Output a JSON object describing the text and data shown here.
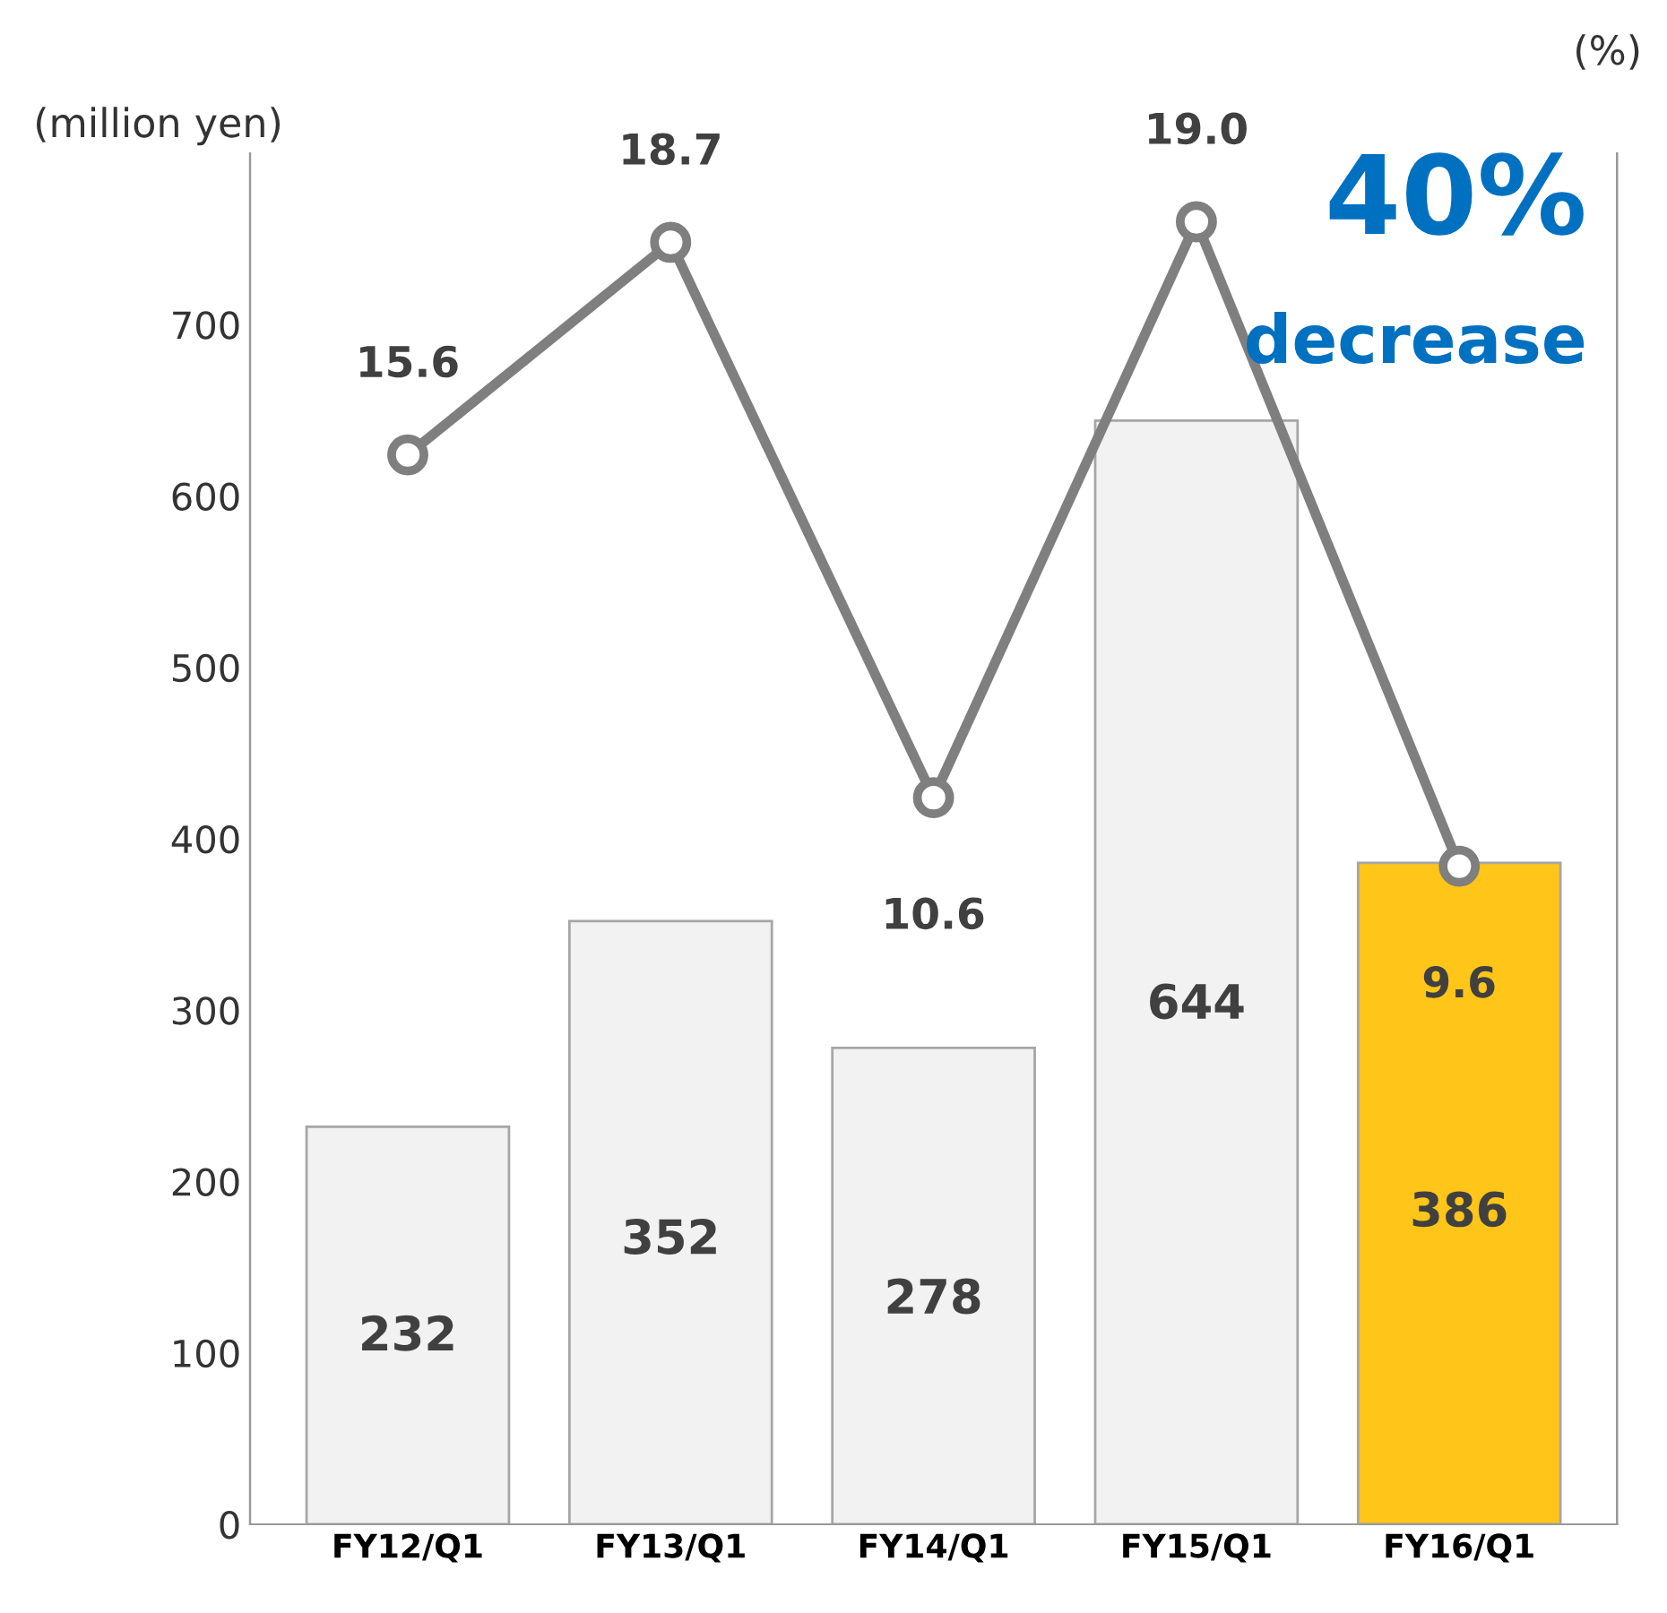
{
  "chart_data": {
    "type": "bar",
    "ylabel": "(million yen)",
    "y2label": "(%)",
    "categories": [
      "FY12/Q1",
      "FY13/Q1",
      "FY14/Q1",
      "FY15/Q1",
      "FY16/Q1"
    ],
    "series": [
      {
        "values": [
          232,
          352,
          278,
          644,
          386
        ],
        "colors": [
          "#f2f2f2",
          "#f2f2f2",
          "#f2f2f2",
          "#f2f2f2",
          "#ffc519"
        ]
      },
      {
        "type": "line",
        "axis": "y2",
        "color": "#7f7f7f",
        "values": [
          15.6,
          18.7,
          10.6,
          19.0,
          9.6
        ],
        "value_labels": [
          "15.6",
          "18.7",
          "10.6",
          "19.0",
          "9.6"
        ],
        "marker": "circle"
      }
    ],
    "ylim": [
      0,
      800
    ],
    "yticks": [
      0,
      100,
      200,
      300,
      400,
      500,
      600,
      700
    ],
    "y2lim": [
      0,
      20
    ],
    "data_labels": true,
    "grid": false,
    "legend": false,
    "annotations": [
      "40%",
      "decrease"
    ]
  }
}
